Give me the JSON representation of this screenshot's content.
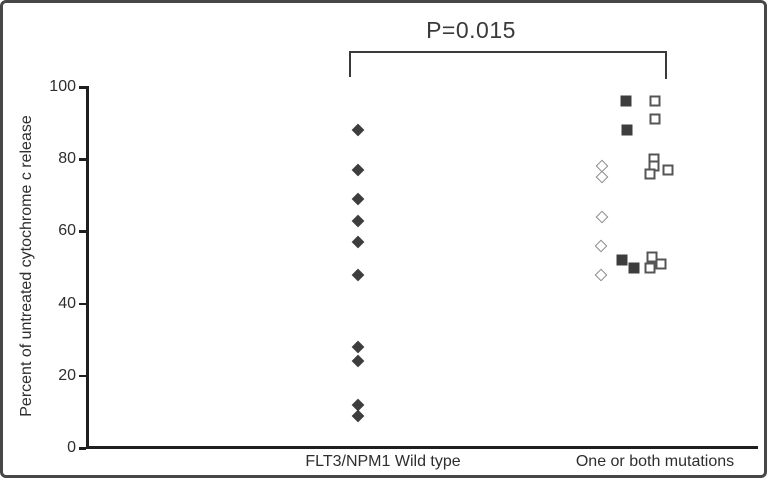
{
  "figure": {
    "annotation": "P=0.015"
  },
  "chart_data": {
    "type": "scatter",
    "title": "",
    "annotation": "P=0.015",
    "xlabel": "",
    "ylabel": "Percent of untreated cytochrome c release",
    "ylim": [
      0,
      100
    ],
    "yticks": [
      0,
      20,
      40,
      60,
      80,
      100
    ],
    "grid": false,
    "legend": "none",
    "categories": [
      "FLT3/NPM1 Wild type",
      "One or both mutations"
    ],
    "colors": {
      "filled_marker": "#3d3d3d",
      "open_marker_border": "#555555",
      "open_diamond_border": "#8a8a8a",
      "axis": "#1f1f1f",
      "figure_border": "#474747"
    },
    "series": [
      {
        "name": "FLT3/NPM1 Wild type",
        "marker": "filled-diamond",
        "category": 0,
        "points": [
          {
            "y": 88,
            "dx": 0
          },
          {
            "y": 77,
            "dx": 0
          },
          {
            "y": 69,
            "dx": 0
          },
          {
            "y": 63,
            "dx": 0
          },
          {
            "y": 57,
            "dx": 0
          },
          {
            "y": 48,
            "dx": 0
          },
          {
            "y": 28,
            "dx": 0
          },
          {
            "y": 24,
            "dx": 0
          },
          {
            "y": 12,
            "dx": 0
          },
          {
            "y": 9,
            "dx": 0
          }
        ]
      },
      {
        "name": "One or both mutations (open diamonds)",
        "marker": "open-diamond",
        "category": 1,
        "points": [
          {
            "y": 78,
            "dx": -53
          },
          {
            "y": 75,
            "dx": -53
          },
          {
            "y": 64,
            "dx": -53
          },
          {
            "y": 56,
            "dx": -54
          },
          {
            "y": 48,
            "dx": -54
          }
        ]
      },
      {
        "name": "One or both mutations (filled squares)",
        "marker": "filled-square",
        "category": 1,
        "points": [
          {
            "y": 96,
            "dx": -29
          },
          {
            "y": 88,
            "dx": -28
          },
          {
            "y": 52,
            "dx": -33
          },
          {
            "y": 50,
            "dx": -21
          }
        ]
      },
      {
        "name": "One or both mutations (open squares)",
        "marker": "open-square",
        "category": 1,
        "points": [
          {
            "y": 96,
            "dx": 0
          },
          {
            "y": 91,
            "dx": 0
          },
          {
            "y": 80,
            "dx": -1
          },
          {
            "y": 78,
            "dx": -1
          },
          {
            "y": 77,
            "dx": 13
          },
          {
            "y": 76,
            "dx": -5
          },
          {
            "y": 53,
            "dx": -3
          },
          {
            "y": 51,
            "dx": 6
          },
          {
            "y": 50,
            "dx": -5
          }
        ]
      }
    ]
  }
}
